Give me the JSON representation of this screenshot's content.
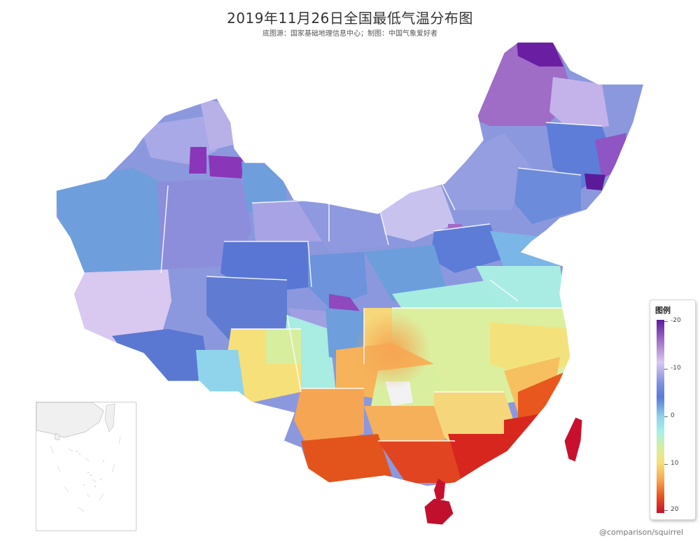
{
  "header": {
    "title": "2019年11月26日全国最低气温分布图",
    "subtitle": "底图源：国家基础地理信息中心；制图：中国气象爱好者"
  },
  "legend": {
    "title": "图例",
    "ticks": [
      "-20",
      "-10",
      "0",
      "10",
      "20"
    ],
    "range": [
      -20,
      20
    ],
    "colors": [
      "#5e1a9c",
      "#a679cc",
      "#d9c8ef",
      "#7d8fe0",
      "#5a7ad6",
      "#8fd2ea",
      "#a8f0e6",
      "#d6ee9e",
      "#f6e07a",
      "#f6a552",
      "#e8561e",
      "#c8102e"
    ]
  },
  "credit": "@comparison/squirrel"
}
